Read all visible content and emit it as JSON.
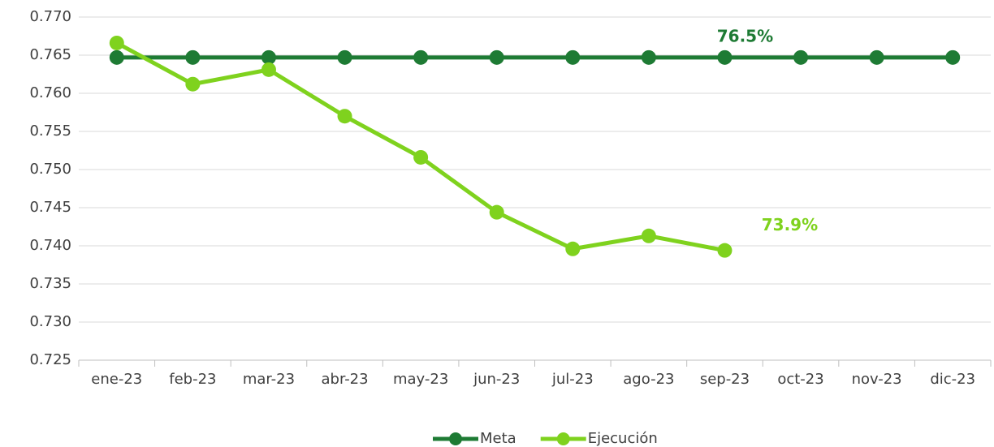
{
  "chart_data": {
    "type": "line",
    "categories": [
      "ene-23",
      "feb-23",
      "mar-23",
      "abr-23",
      "may-23",
      "jun-23",
      "jul-23",
      "ago-23",
      "sep-23",
      "oct-23",
      "nov-23",
      "dic-23"
    ],
    "series": [
      {
        "name": "Meta",
        "color": "#1e7b34",
        "values": [
          0.7647,
          0.7647,
          0.7647,
          0.7647,
          0.7647,
          0.7647,
          0.7647,
          0.7647,
          0.7647,
          0.7647,
          0.7647,
          0.7647
        ],
        "value_labels": [
          null,
          null,
          null,
          null,
          null,
          null,
          null,
          null,
          "76.5%",
          null,
          null,
          null
        ]
      },
      {
        "name": "Ejecución",
        "color": "#7fd21e",
        "values": [
          0.7666,
          0.7612,
          0.7631,
          0.757,
          0.7516,
          0.7444,
          0.7396,
          0.7413,
          0.7394,
          null,
          null,
          null
        ],
        "value_labels": [
          null,
          null,
          null,
          null,
          null,
          null,
          null,
          null,
          "73.9%",
          null,
          null,
          null
        ]
      }
    ],
    "ylim": [
      0.725,
      0.77
    ],
    "yticks": [
      0.725,
      {
        "value": 0.73,
        "label": "0.730"
      },
      0.735,
      {
        "value": 0.74,
        "label": "0.740"
      },
      0.745,
      {
        "value": 0.75,
        "label": "0.750"
      },
      0.755,
      {
        "value": 0.76,
        "label": "0.760"
      },
      0.765,
      {
        "value": 0.77,
        "label": "0.770"
      }
    ],
    "grid": true,
    "legend": "bottom"
  }
}
